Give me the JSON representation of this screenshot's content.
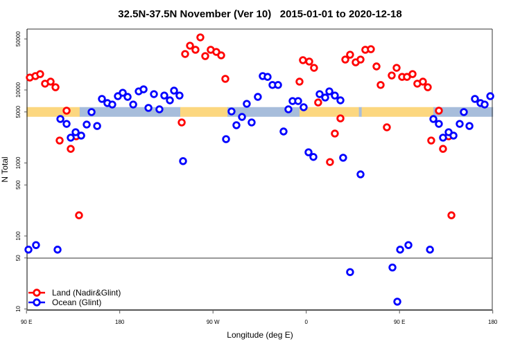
{
  "chart_data": {
    "type": "scatter",
    "title": "32.5N-37.5N November (Ver 10)   2015-01-01 to 2020-12-18",
    "xlabel": "Longitude (deg E)",
    "ylabel": "N Total",
    "y_scale": "log",
    "ylim": [
      10,
      80000
    ],
    "x_ticks": [
      {
        "lon": 90,
        "label": "90 E"
      },
      {
        "lon": 180,
        "label": "180"
      },
      {
        "lon": -90,
        "label": "90 W"
      },
      {
        "lon": 0,
        "label": "0"
      },
      {
        "lon": 90,
        "label": "90 E"
      },
      {
        "lon": 180,
        "label": "180"
      }
    ],
    "xlim_lon": [
      90,
      180
    ],
    "x_wraps": "90 E eastward around the globe to 180 (540 degrees)",
    "y_ticks": [
      {
        "value": 50000,
        "label": "50000"
      },
      {
        "value": 10000,
        "label": "10000"
      },
      {
        "value": 5000,
        "label": "5000"
      },
      {
        "value": 1000,
        "label": "1000"
      },
      {
        "value": 500,
        "label": "500"
      },
      {
        "value": 100,
        "label": "100"
      },
      {
        "value": 50,
        "label": "50"
      },
      {
        "value": 10,
        "label": "10"
      }
    ],
    "reference_line_value": 50,
    "legend_position": "bottom-left",
    "surface_strip": {
      "value": 5000,
      "colors": {
        "land": "#FCD77F",
        "ocean": "#A7BDDB"
      },
      "segments": [
        {
          "from": 90,
          "to": 141.3,
          "type": "land"
        },
        {
          "from": 141.3,
          "to": -121.6,
          "type": "ocean"
        },
        {
          "from": -121.6,
          "to": -76.1,
          "type": "land"
        },
        {
          "from": -76.1,
          "to": -6.5,
          "type": "ocean"
        },
        {
          "from": -6.5,
          "to": 50.8,
          "type": "land"
        },
        {
          "from": 50.8,
          "to": 53.5,
          "type": "ocean"
        },
        {
          "from": 53.5,
          "to": 122.7,
          "type": "land"
        },
        {
          "from": 122.7,
          "to": 180,
          "type": "ocean"
        }
      ]
    },
    "series": [
      {
        "name": "Land (Nadir&Glint)",
        "color": "#FF0000",
        "points": [
          [
            93.2,
            14800
          ],
          [
            98.6,
            15500
          ],
          [
            103.2,
            16500
          ],
          [
            107.9,
            12200
          ],
          [
            113.3,
            13000
          ],
          [
            118,
            10900
          ],
          [
            122,
            2030
          ],
          [
            128.7,
            5200
          ],
          [
            132.7,
            1560
          ],
          [
            138,
            2320
          ],
          [
            140.7,
            192
          ],
          [
            -120.2,
            3590
          ],
          [
            -116.9,
            31100
          ],
          [
            -112.2,
            40400
          ],
          [
            -106.9,
            35500
          ],
          [
            -102.2,
            52500
          ],
          [
            -97.5,
            29100
          ],
          [
            -92.2,
            35500
          ],
          [
            -86.8,
            33200
          ],
          [
            -82.1,
            29800
          ],
          [
            -78.1,
            14200
          ],
          [
            -6.5,
            13000
          ],
          [
            -3.2,
            25600
          ],
          [
            2.9,
            24500
          ],
          [
            7.5,
            20100
          ],
          [
            11.5,
            6740
          ],
          [
            22.9,
            1030
          ],
          [
            27.6,
            2530
          ],
          [
            33,
            4080
          ],
          [
            37.7,
            26100
          ],
          [
            42.3,
            30400
          ],
          [
            47.7,
            23900
          ],
          [
            52.4,
            26100
          ],
          [
            57,
            35500
          ],
          [
            62.4,
            36200
          ],
          [
            67.8,
            21000
          ],
          [
            71.8,
            11700
          ],
          [
            77.8,
            3080
          ],
          [
            82.5,
            15800
          ],
          [
            87.2,
            20100
          ],
          [
            92.5,
            15100
          ],
          [
            97.2,
            15100
          ],
          [
            102.6,
            16500
          ],
          [
            107.2,
            12200
          ],
          [
            112.6,
            13000
          ],
          [
            117.3,
            10900
          ],
          [
            120.6,
            2030
          ],
          [
            128,
            5200
          ],
          [
            132,
            1560
          ],
          [
            137.4,
            2320
          ],
          [
            140.1,
            192
          ]
        ]
      },
      {
        "name": "Ocean (Glint)",
        "color": "#0000FF",
        "points": [
          [
            91.9,
            65
          ],
          [
            99.2,
            75
          ],
          [
            120,
            65
          ],
          [
            122.7,
            4000
          ],
          [
            128.7,
            3430
          ],
          [
            132.7,
            2220
          ],
          [
            137.4,
            2640
          ],
          [
            142.8,
            2370
          ],
          [
            148.1,
            3360
          ],
          [
            152.8,
            4980
          ],
          [
            158.2,
            3210
          ],
          [
            162.8,
            7540
          ],
          [
            168.1,
            6610
          ],
          [
            172.8,
            6320
          ],
          [
            178.2,
            8220
          ],
          [
            -177.1,
            9160
          ],
          [
            -172.4,
            8040
          ],
          [
            -167,
            6320
          ],
          [
            -161.7,
            9570
          ],
          [
            -157,
            10200
          ],
          [
            -152.3,
            5680
          ],
          [
            -147,
            8770
          ],
          [
            -141.7,
            5430
          ],
          [
            -137,
            8390
          ],
          [
            -131.6,
            7210
          ],
          [
            -127.6,
            9790
          ],
          [
            -122.3,
            8390
          ],
          [
            -118.9,
            1060
          ],
          [
            -77.4,
            2120
          ],
          [
            -72.1,
            5080
          ],
          [
            -67.4,
            3290
          ],
          [
            -62,
            4270
          ],
          [
            -57.4,
            6460
          ],
          [
            -52.7,
            3590
          ],
          [
            -46.7,
            8040
          ],
          [
            -42,
            15500
          ],
          [
            -37.3,
            15100
          ],
          [
            -32.6,
            11700
          ],
          [
            -27.2,
            11700
          ],
          [
            -21.9,
            2700
          ],
          [
            -17.2,
            5430
          ],
          [
            -13.2,
            7050
          ],
          [
            -7.8,
            7050
          ],
          [
            -2.5,
            5800
          ],
          [
            2.2,
            1400
          ],
          [
            6.9,
            1210
          ],
          [
            12.9,
            8770
          ],
          [
            18.3,
            7870
          ],
          [
            22.3,
            9570
          ],
          [
            27.6,
            8390
          ],
          [
            33,
            7210
          ],
          [
            35.6,
            1180
          ],
          [
            42.3,
            32
          ],
          [
            52.4,
            698
          ],
          [
            83.2,
            37
          ],
          [
            87.9,
            12.6
          ],
          [
            90.6,
            65
          ],
          [
            98.6,
            75
          ],
          [
            119.4,
            65
          ],
          [
            122.7,
            4000
          ],
          [
            128,
            3430
          ],
          [
            132,
            2220
          ],
          [
            137.4,
            2640
          ],
          [
            142.1,
            2370
          ],
          [
            148.1,
            3430
          ],
          [
            152.1,
            4980
          ],
          [
            157.5,
            3210
          ],
          [
            162.8,
            7540
          ],
          [
            168.2,
            6610
          ],
          [
            172.2,
            6320
          ],
          [
            177.6,
            8220
          ]
        ]
      }
    ]
  }
}
